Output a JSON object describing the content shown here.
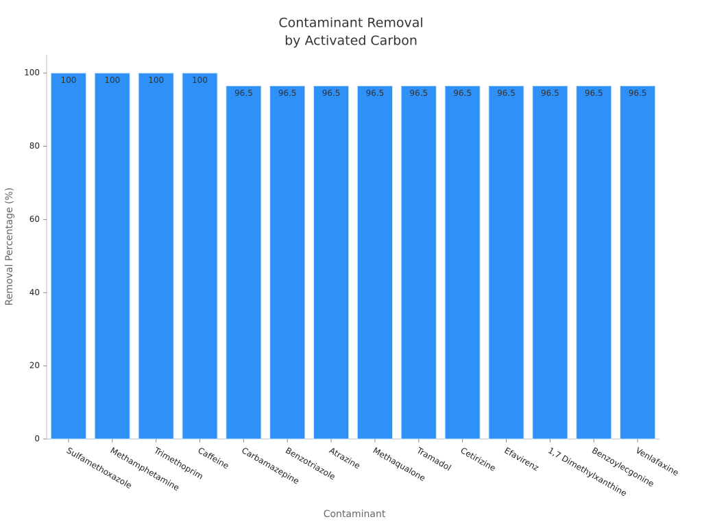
{
  "chart_data": {
    "type": "bar",
    "title": [
      "Contaminant Removal",
      "by Activated Carbon"
    ],
    "x_label": "Contaminant",
    "y_label": "Removal Percentage (%)",
    "categories": [
      "Sulfamethoxazole",
      "Methamphetamine",
      "Trimethoprim",
      "Caffeine",
      "Carbamazepine",
      "Benzotriazole",
      "Atrazine",
      "Methaqualone",
      "Tramadol",
      "Cetirizine",
      "Efavirenz",
      "1,7 Dimethylxanthine",
      "Benzoylecgonine",
      "Venlafaxine"
    ],
    "values": [
      100,
      100,
      100,
      100,
      96.5,
      96.5,
      96.5,
      96.5,
      96.5,
      96.5,
      96.5,
      96.5,
      96.5,
      96.5
    ],
    "color": "#2f91f7",
    "ylim": [
      0,
      105
    ],
    "yticks": [
      0,
      20,
      40,
      60,
      80,
      100
    ],
    "grid": false
  }
}
